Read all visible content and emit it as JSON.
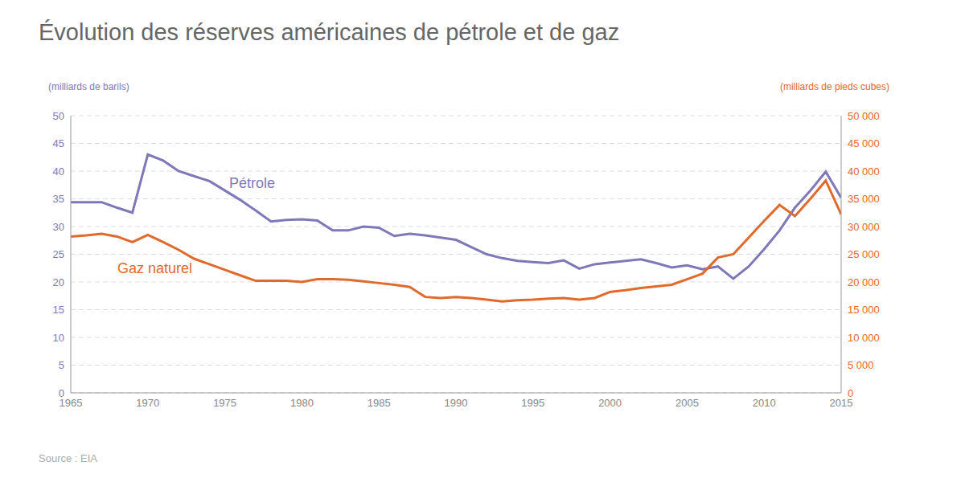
{
  "chart_data": {
    "type": "line",
    "title": "Évolution des réserves américaines de pétrole et de gaz",
    "ylabel": "(milliards de barils)",
    "y2label": "(milliards de pieds cubes)",
    "source": "Source : EIA",
    "x": [
      1965,
      1966,
      1967,
      1968,
      1969,
      1970,
      1971,
      1972,
      1973,
      1974,
      1975,
      1976,
      1977,
      1978,
      1979,
      1980,
      1981,
      1982,
      1983,
      1984,
      1985,
      1986,
      1987,
      1988,
      1989,
      1990,
      1991,
      1992,
      1993,
      1994,
      1995,
      1996,
      1997,
      1998,
      1999,
      2000,
      2001,
      2002,
      2003,
      2004,
      2005,
      2006,
      2007,
      2008,
      2009,
      2010,
      2011,
      2012,
      2013,
      2014,
      2015
    ],
    "series": [
      {
        "name": "Pétrole",
        "color": "#7f78b8",
        "axis": "y",
        "values": [
          34.4,
          34.4,
          34.4,
          33.4,
          32.5,
          43.0,
          41.9,
          40.0,
          39.1,
          38.2,
          36.5,
          34.8,
          32.9,
          30.9,
          31.2,
          31.3,
          31.1,
          29.3,
          29.3,
          30.0,
          29.8,
          28.3,
          28.7,
          28.4,
          28.0,
          27.6,
          26.3,
          25.0,
          24.3,
          23.8,
          23.6,
          23.4,
          23.9,
          22.4,
          23.2,
          23.5,
          23.8,
          24.1,
          23.4,
          22.6,
          23.0,
          22.3,
          22.8,
          20.6,
          22.8,
          25.9,
          29.3,
          33.4,
          36.5,
          39.9,
          35.2
        ]
      },
      {
        "name": "Gaz naturel",
        "color": "#e06a2c",
        "axis": "y2",
        "values": [
          28200,
          28400,
          28700,
          28200,
          27200,
          28500,
          27200,
          25800,
          24200,
          23200,
          22200,
          21200,
          20200,
          20200,
          20200,
          20000,
          20500,
          20500,
          20400,
          20100,
          19800,
          19500,
          19100,
          17300,
          17100,
          17300,
          17100,
          16800,
          16500,
          16700,
          16800,
          17000,
          17100,
          16800,
          17100,
          18200,
          18500,
          18900,
          19200,
          19500,
          20500,
          21500,
          24400,
          25000,
          28000,
          31000,
          33900,
          31900,
          35000,
          38300,
          32200
        ]
      }
    ],
    "xlim": [
      1965,
      2015
    ],
    "xticks": [
      1965,
      1970,
      1975,
      1980,
      1985,
      1990,
      1995,
      2000,
      2005,
      2010,
      2015
    ],
    "ylim": [
      0,
      50
    ],
    "yticks": [
      0,
      5,
      10,
      15,
      20,
      25,
      30,
      35,
      40,
      45,
      50
    ],
    "y2lim": [
      0,
      50000
    ],
    "y2ticks": [
      0,
      {
        "value": 5000,
        "label": "5 000"
      },
      {
        "value": 10000,
        "label": "10 000"
      },
      {
        "value": 15000,
        "label": "15 000"
      },
      {
        "value": 20000,
        "label": "20 000"
      },
      {
        "value": 25000,
        "label": "25 000"
      },
      {
        "value": 30000,
        "label": "30 000"
      },
      {
        "value": 35000,
        "label": "35 000"
      },
      {
        "value": 40000,
        "label": "40 000"
      },
      {
        "value": 45000,
        "label": "45 000"
      },
      {
        "value": 50000,
        "label": "50 000"
      }
    ],
    "grid": true
  }
}
